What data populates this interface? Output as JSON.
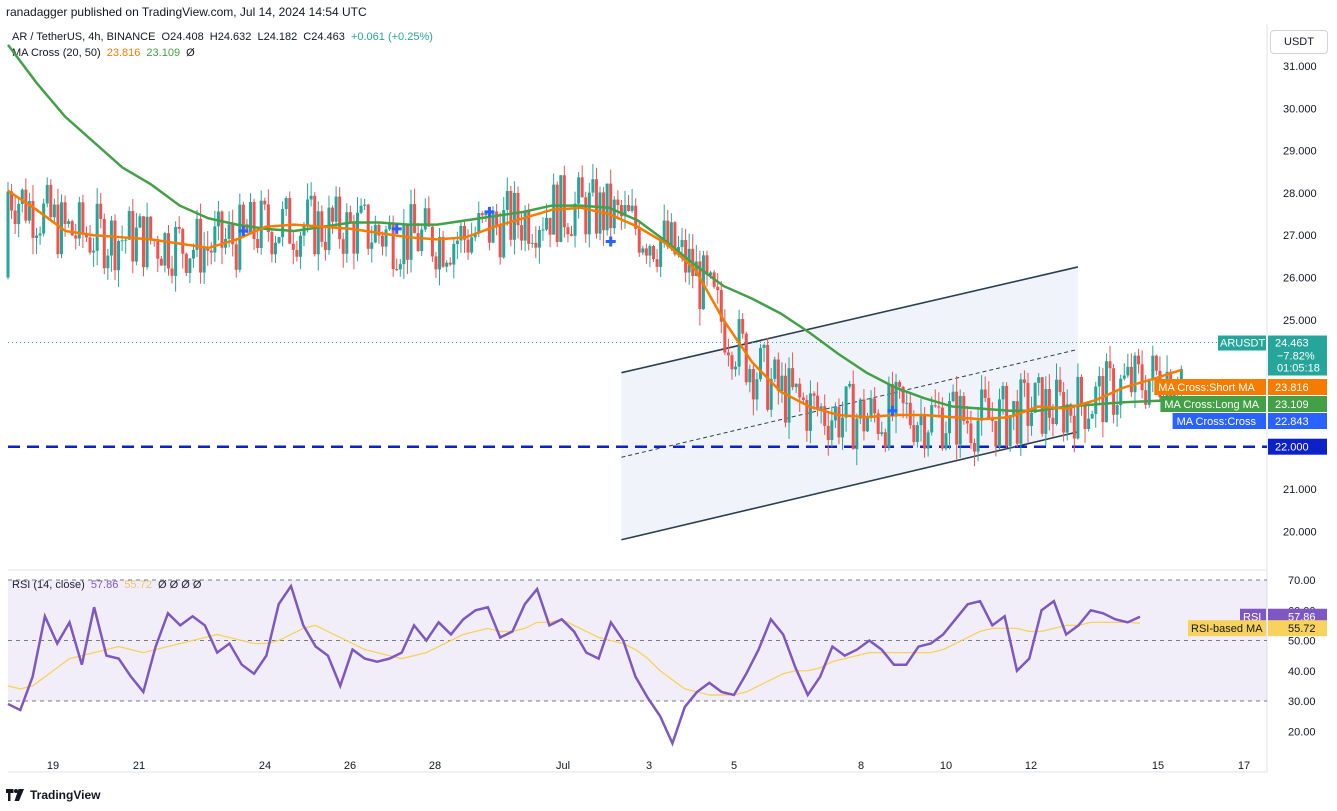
{
  "header": {
    "publisher_line": "ranadagger published on TradingView.com, Jul 14, 2024 14:54 UTC"
  },
  "legend": {
    "symbol": "AR / TetherUS, 4h, BINANCE",
    "ohlc": {
      "o": "O24.408",
      "h": "H24.632",
      "l": "L24.182",
      "c": "C24.463",
      "change": "+0.061 (+0.25%)"
    },
    "ma_label": "MA Cross (20, 50)",
    "ma_short": "23.816",
    "ma_long": "23.109",
    "ma_extra": "Ø",
    "rsi_label": "RSI (14, close)",
    "rsi_value": "57.86",
    "rsi_ma_value": "55.72",
    "rsi_extra": "Ø Ø Ø Ø"
  },
  "currency_button": "USDT",
  "footer": {
    "brand": "TradingView"
  },
  "colors": {
    "up": "#26a69a",
    "down": "#ef5350",
    "ma_short": "#f57c00",
    "ma_long": "#43a047",
    "cross": "#2962ff",
    "rsi": "#7e57c2",
    "rsi_ma": "#f7d25c",
    "dashed_support": "#0d21c9",
    "channel": "#2a3f4f",
    "last_price": "#26a69a"
  },
  "chart_data": [
    {
      "type": "candlestick",
      "title": "AR / TetherUS, 4h, BINANCE",
      "x_ticks": [
        "19",
        "21",
        "24",
        "26",
        "28",
        "Jul",
        "3",
        "5",
        "8",
        "10",
        "12",
        "15",
        "17"
      ],
      "y_ticks": [
        "31.000",
        "30.000",
        "29.000",
        "28.000",
        "27.000",
        "26.000",
        "25.000",
        "21.000",
        "20.000"
      ],
      "ylim": [
        19.4,
        31.5
      ],
      "support_level": 22.0,
      "price_labels": [
        {
          "name": "ARUSDT",
          "value": "24.463",
          "extra": [
            "−7.82%",
            "01:05:18"
          ],
          "color": "#26a69a"
        },
        {
          "name": "MA Cross:Short MA",
          "value": "23.816",
          "color": "#f57c00"
        },
        {
          "name": "MA Cross:Long MA",
          "value": "23.109",
          "color": "#43a047"
        },
        {
          "name": "MA Cross:Cross",
          "value": "22.843",
          "color": "#2962ff"
        },
        {
          "name": "",
          "value": "22.000",
          "color": "#0d21c9"
        }
      ],
      "ma_short_points": [
        [
          0,
          28.05
        ],
        [
          8,
          27.6
        ],
        [
          16,
          27.1
        ],
        [
          24,
          27.0
        ],
        [
          32,
          26.95
        ],
        [
          40,
          26.9
        ],
        [
          48,
          26.8
        ],
        [
          56,
          26.7
        ],
        [
          64,
          26.9
        ],
        [
          72,
          27.2
        ],
        [
          80,
          27.25
        ],
        [
          88,
          27.2
        ],
        [
          96,
          27.15
        ],
        [
          104,
          27.05
        ],
        [
          112,
          26.95
        ],
        [
          120,
          26.9
        ],
        [
          128,
          26.95
        ],
        [
          136,
          27.2
        ],
        [
          144,
          27.4
        ],
        [
          152,
          27.6
        ],
        [
          160,
          27.65
        ],
        [
          168,
          27.5
        ],
        [
          176,
          27.2
        ],
        [
          184,
          26.8
        ],
        [
          192,
          26.2
        ],
        [
          200,
          25.0
        ],
        [
          208,
          24.0
        ],
        [
          216,
          23.3
        ],
        [
          224,
          22.95
        ],
        [
          232,
          22.75
        ],
        [
          240,
          22.7
        ],
        [
          248,
          22.75
        ],
        [
          256,
          22.75
        ],
        [
          264,
          22.7
        ],
        [
          272,
          22.65
        ],
        [
          280,
          22.7
        ],
        [
          288,
          22.95
        ],
        [
          296,
          22.9
        ],
        [
          304,
          23.1
        ],
        [
          312,
          23.4
        ],
        [
          320,
          23.6
        ],
        [
          328,
          23.816
        ]
      ],
      "ma_long_points": [
        [
          0,
          31.5
        ],
        [
          8,
          30.6
        ],
        [
          16,
          29.8
        ],
        [
          24,
          29.2
        ],
        [
          32,
          28.6
        ],
        [
          40,
          28.2
        ],
        [
          48,
          27.7
        ],
        [
          56,
          27.4
        ],
        [
          64,
          27.25
        ],
        [
          72,
          27.15
        ],
        [
          80,
          27.1
        ],
        [
          88,
          27.2
        ],
        [
          96,
          27.3
        ],
        [
          104,
          27.3
        ],
        [
          112,
          27.25
        ],
        [
          120,
          27.25
        ],
        [
          128,
          27.35
        ],
        [
          136,
          27.45
        ],
        [
          144,
          27.55
        ],
        [
          152,
          27.7
        ],
        [
          160,
          27.7
        ],
        [
          168,
          27.65
        ],
        [
          176,
          27.35
        ],
        [
          184,
          26.85
        ],
        [
          192,
          26.3
        ],
        [
          200,
          25.8
        ],
        [
          208,
          25.5
        ],
        [
          216,
          25.15
        ],
        [
          224,
          24.7
        ],
        [
          232,
          24.2
        ],
        [
          240,
          23.75
        ],
        [
          248,
          23.4
        ],
        [
          256,
          23.15
        ],
        [
          264,
          22.95
        ],
        [
          272,
          22.9
        ],
        [
          280,
          22.85
        ],
        [
          288,
          22.85
        ],
        [
          296,
          22.95
        ],
        [
          304,
          23.0
        ],
        [
          312,
          23.05
        ],
        [
          320,
          23.08
        ],
        [
          328,
          23.109
        ]
      ],
      "cross_markers": [
        [
          66,
          27.1
        ],
        [
          109,
          27.15
        ],
        [
          135,
          27.55
        ],
        [
          169,
          26.85
        ],
        [
          248,
          22.85
        ]
      ],
      "channel": {
        "upper": [
          [
            172,
            23.75
          ],
          [
            300,
            26.25
          ]
        ],
        "lower": [
          [
            172,
            19.8
          ],
          [
            300,
            22.35
          ]
        ],
        "mid": [
          [
            172,
            21.75
          ],
          [
            300,
            24.3
          ]
        ]
      }
    },
    {
      "type": "line",
      "title": "RSI (14, close)",
      "y_ticks": [
        "70.00",
        "60.00",
        "50.00",
        "40.00",
        "30.00",
        "20.00"
      ],
      "ylim": [
        15,
        72
      ],
      "band": [
        30,
        70
      ],
      "series": [
        {
          "name": "RSI",
          "last": "57.86",
          "values": [
            29,
            27,
            38,
            58,
            49,
            56,
            42,
            61,
            45,
            44,
            38,
            33,
            48,
            59,
            55,
            58,
            55,
            46,
            49,
            42,
            39,
            45,
            62,
            68,
            55,
            48,
            45,
            35,
            47,
            44,
            43,
            44,
            46,
            55,
            50,
            56,
            52,
            57,
            60,
            61,
            51,
            53,
            62,
            67,
            55,
            57,
            53,
            46,
            44,
            56,
            50,
            38,
            31,
            25,
            16,
            28,
            33,
            36,
            33,
            32,
            39,
            47,
            57,
            52,
            41,
            32,
            38,
            48,
            45,
            47,
            50,
            47,
            42,
            42,
            48,
            49,
            52,
            57,
            62,
            63,
            55,
            58,
            40,
            44,
            60,
            63,
            52,
            55,
            60,
            59,
            57,
            56,
            57.86
          ]
        },
        {
          "name": "RSI-based MA",
          "last": "55.72",
          "values": [
            35,
            34,
            35,
            38,
            41,
            44,
            45,
            46,
            47,
            48,
            47,
            46,
            47,
            48,
            49,
            50,
            51,
            52,
            51,
            50,
            49,
            49,
            50,
            52,
            54,
            55,
            53,
            51,
            49,
            47,
            46,
            45,
            44,
            45,
            46,
            48,
            50,
            52,
            53,
            54,
            53,
            53,
            54,
            56,
            56,
            57,
            55,
            53,
            51,
            50,
            49,
            47,
            44,
            40,
            37,
            34,
            33,
            32,
            32,
            32,
            33,
            35,
            37,
            39,
            40,
            40,
            41,
            43,
            44,
            45,
            46,
            46,
            46,
            46,
            46,
            46,
            47,
            49,
            51,
            53,
            54,
            54,
            54,
            53,
            53,
            54,
            55,
            55,
            56,
            56,
            56,
            56,
            55.72
          ]
        }
      ]
    }
  ]
}
